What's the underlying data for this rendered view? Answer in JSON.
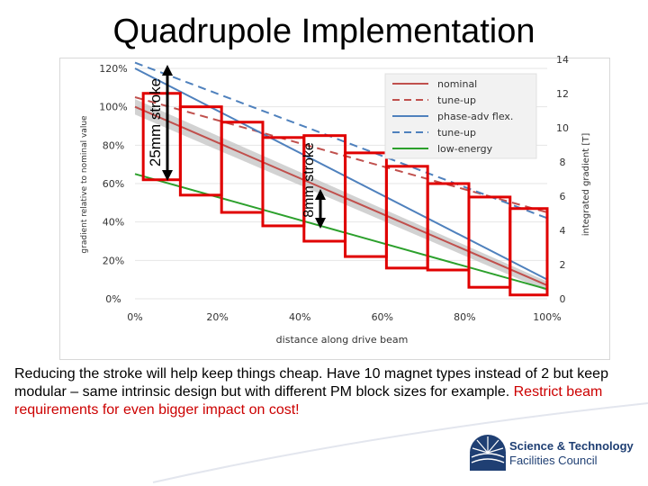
{
  "page": {
    "title": "Quadrupole Implementation",
    "caption_black": "Reducing the stroke will help keep things cheap. Have 10 magnet types instead of 2 but keep modular – same intrinsic design but with different PM block sizes for example. ",
    "caption_red": "Restrict beam requirements for even bigger impact on cost!",
    "logo_line1": "Science & Technology",
    "logo_line2": "Facilities Council"
  },
  "annotations": {
    "stroke_big": "25mm stroke",
    "stroke_small": "8mm stroke"
  },
  "colors": {
    "nominal": "#c0504d",
    "phase_adv": "#4f81bd",
    "low_energy": "#2ca02c",
    "boxes": "#e00000",
    "band": "#bfbfbf"
  },
  "chart_data": {
    "type": "line",
    "xlabel": "distance along drive beam",
    "ylabel": "gradient relative to nominal value",
    "y2label": "integrated gradient [T]",
    "x_ticks": [
      "0%",
      "20%",
      "40%",
      "60%",
      "80%",
      "100%"
    ],
    "y_ticks": [
      "0%",
      "20%",
      "40%",
      "60%",
      "80%",
      "100%",
      "120%"
    ],
    "y2_ticks": [
      "0",
      "2",
      "4",
      "6",
      "8",
      "10",
      "12",
      "14"
    ],
    "xlim": [
      0,
      100
    ],
    "ylim": [
      0,
      120
    ],
    "y2lim": [
      0,
      14
    ],
    "legend_position": "top-right",
    "series": [
      {
        "name": "nominal",
        "style": "solid",
        "color_key": "nominal",
        "x": [
          0,
          100
        ],
        "y": [
          100,
          7
        ]
      },
      {
        "name": "tune-up",
        "style": "dashed",
        "color_key": "nominal",
        "x": [
          0,
          100
        ],
        "y": [
          105,
          45
        ]
      },
      {
        "name": "phase-adv flex.",
        "style": "solid",
        "color_key": "phase_adv",
        "x": [
          0,
          100
        ],
        "y": [
          120,
          10
        ]
      },
      {
        "name": "tune-up",
        "style": "dashed",
        "color_key": "phase_adv",
        "x": [
          0,
          100
        ],
        "y": [
          123,
          42
        ]
      },
      {
        "name": "low-energy",
        "style": "solid",
        "color_key": "low_energy",
        "x": [
          0,
          100
        ],
        "y": [
          65,
          5
        ]
      }
    ],
    "band": {
      "x": [
        0,
        100
      ],
      "upper": [
        104,
        9
      ],
      "lower": [
        96,
        4
      ]
    },
    "magnet_boxes": [
      {
        "x0": 2,
        "x1": 11,
        "y_top": 107,
        "y_bottom": 62
      },
      {
        "x0": 11,
        "x1": 21,
        "y_top": 100,
        "y_bottom": 54
      },
      {
        "x0": 21,
        "x1": 31,
        "y_top": 92,
        "y_bottom": 45
      },
      {
        "x0": 31,
        "x1": 41,
        "y_top": 84,
        "y_bottom": 38
      },
      {
        "x0": 41,
        "x1": 51,
        "y_top": 85,
        "y_bottom": 30
      },
      {
        "x0": 51,
        "x1": 61,
        "y_top": 76,
        "y_bottom": 22
      },
      {
        "x0": 61,
        "x1": 71,
        "y_top": 69,
        "y_bottom": 16
      },
      {
        "x0": 71,
        "x1": 81,
        "y_top": 60,
        "y_bottom": 15
      },
      {
        "x0": 81,
        "x1": 91,
        "y_top": 53,
        "y_bottom": 6
      },
      {
        "x0": 91,
        "x1": 100,
        "y_top": 47,
        "y_bottom": 2
      }
    ]
  }
}
